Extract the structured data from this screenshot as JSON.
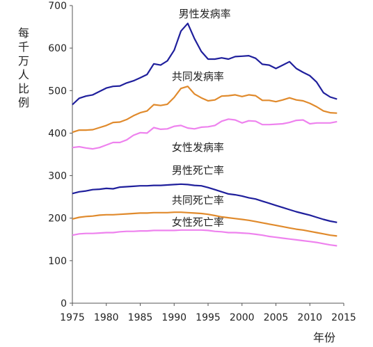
{
  "chart_data": {
    "type": "line",
    "ylabel": "每千万人比例",
    "xlabel": "年份",
    "xlim": [
      1975,
      2015
    ],
    "ylim": [
      0,
      700
    ],
    "xticks": [
      1975,
      1980,
      1985,
      1990,
      1995,
      2000,
      2005,
      2010,
      2015
    ],
    "yticks": [
      0,
      100,
      200,
      300,
      400,
      500,
      600,
      700
    ],
    "grid": false,
    "legend": "inline labels",
    "x": [
      1975,
      1976,
      1977,
      1978,
      1979,
      1980,
      1981,
      1982,
      1983,
      1984,
      1985,
      1986,
      1987,
      1988,
      1989,
      1990,
      1991,
      1992,
      1993,
      1994,
      1995,
      1996,
      1997,
      1998,
      1999,
      2000,
      2001,
      2002,
      2003,
      2004,
      2005,
      2006,
      2007,
      2008,
      2009,
      2010,
      2011,
      2012,
      2013,
      2014
    ],
    "series": [
      {
        "name": "男性发病率",
        "color": "#1f1f9c",
        "values": [
          467,
          482,
          487,
          490,
          498,
          506,
          510,
          511,
          518,
          523,
          530,
          538,
          563,
          560,
          570,
          595,
          640,
          658,
          622,
          592,
          574,
          574,
          577,
          574,
          580,
          581,
          582,
          576,
          562,
          560,
          552,
          560,
          568,
          552,
          543,
          535,
          520,
          495,
          485,
          480
        ]
      },
      {
        "name": "共同发病率",
        "color": "#e08a2c",
        "values": [
          402,
          407,
          407,
          408,
          413,
          418,
          425,
          426,
          432,
          441,
          448,
          452,
          467,
          465,
          468,
          484,
          505,
          510,
          492,
          483,
          476,
          478,
          487,
          488,
          490,
          486,
          490,
          488,
          477,
          477,
          474,
          478,
          483,
          478,
          476,
          470,
          462,
          452,
          448,
          447
        ]
      },
      {
        "name": "女性发病率",
        "color": "#ee82ee",
        "values": [
          366,
          368,
          365,
          363,
          366,
          372,
          378,
          378,
          384,
          395,
          401,
          400,
          413,
          409,
          410,
          416,
          418,
          412,
          410,
          414,
          415,
          418,
          428,
          433,
          431,
          424,
          429,
          428,
          420,
          420,
          421,
          422,
          425,
          430,
          431,
          422,
          424,
          424,
          424,
          427
        ]
      },
      {
        "name": "男性死亡率",
        "color": "#1f1f9c",
        "values": [
          258,
          262,
          264,
          267,
          268,
          270,
          269,
          273,
          274,
          275,
          276,
          276,
          277,
          277,
          278,
          279,
          280,
          279,
          277,
          276,
          272,
          267,
          262,
          257,
          255,
          252,
          248,
          245,
          240,
          235,
          230,
          225,
          220,
          215,
          211,
          207,
          202,
          197,
          193,
          190
        ]
      },
      {
        "name": "共同死亡率",
        "color": "#e08a2c",
        "values": [
          198,
          202,
          204,
          205,
          207,
          208,
          208,
          209,
          210,
          211,
          212,
          212,
          213,
          213,
          213,
          214,
          214,
          213,
          212,
          211,
          209,
          206,
          203,
          201,
          199,
          197,
          195,
          192,
          189,
          186,
          183,
          180,
          177,
          174,
          172,
          169,
          166,
          163,
          160,
          158
        ]
      },
      {
        "name": "女性死亡率",
        "color": "#ee82ee",
        "values": [
          160,
          163,
          164,
          164,
          165,
          166,
          166,
          168,
          169,
          169,
          170,
          170,
          171,
          171,
          171,
          171,
          172,
          172,
          172,
          172,
          171,
          169,
          168,
          166,
          166,
          165,
          164,
          162,
          160,
          157,
          155,
          153,
          151,
          149,
          147,
          145,
          143,
          140,
          137,
          135
        ]
      }
    ],
    "annotations": [
      {
        "text": "男性发病率",
        "x": 1994.5,
        "y": 672
      },
      {
        "text": "共同发病率",
        "x": 1993.5,
        "y": 525
      },
      {
        "text": "女性发病率",
        "x": 1993.5,
        "y": 358
      },
      {
        "text": "男性死亡率",
        "x": 1993.5,
        "y": 304
      },
      {
        "text": "共同死亡率",
        "x": 1993.5,
        "y": 234
      },
      {
        "text": "女性死亡率",
        "x": 1993.5,
        "y": 182
      }
    ]
  }
}
